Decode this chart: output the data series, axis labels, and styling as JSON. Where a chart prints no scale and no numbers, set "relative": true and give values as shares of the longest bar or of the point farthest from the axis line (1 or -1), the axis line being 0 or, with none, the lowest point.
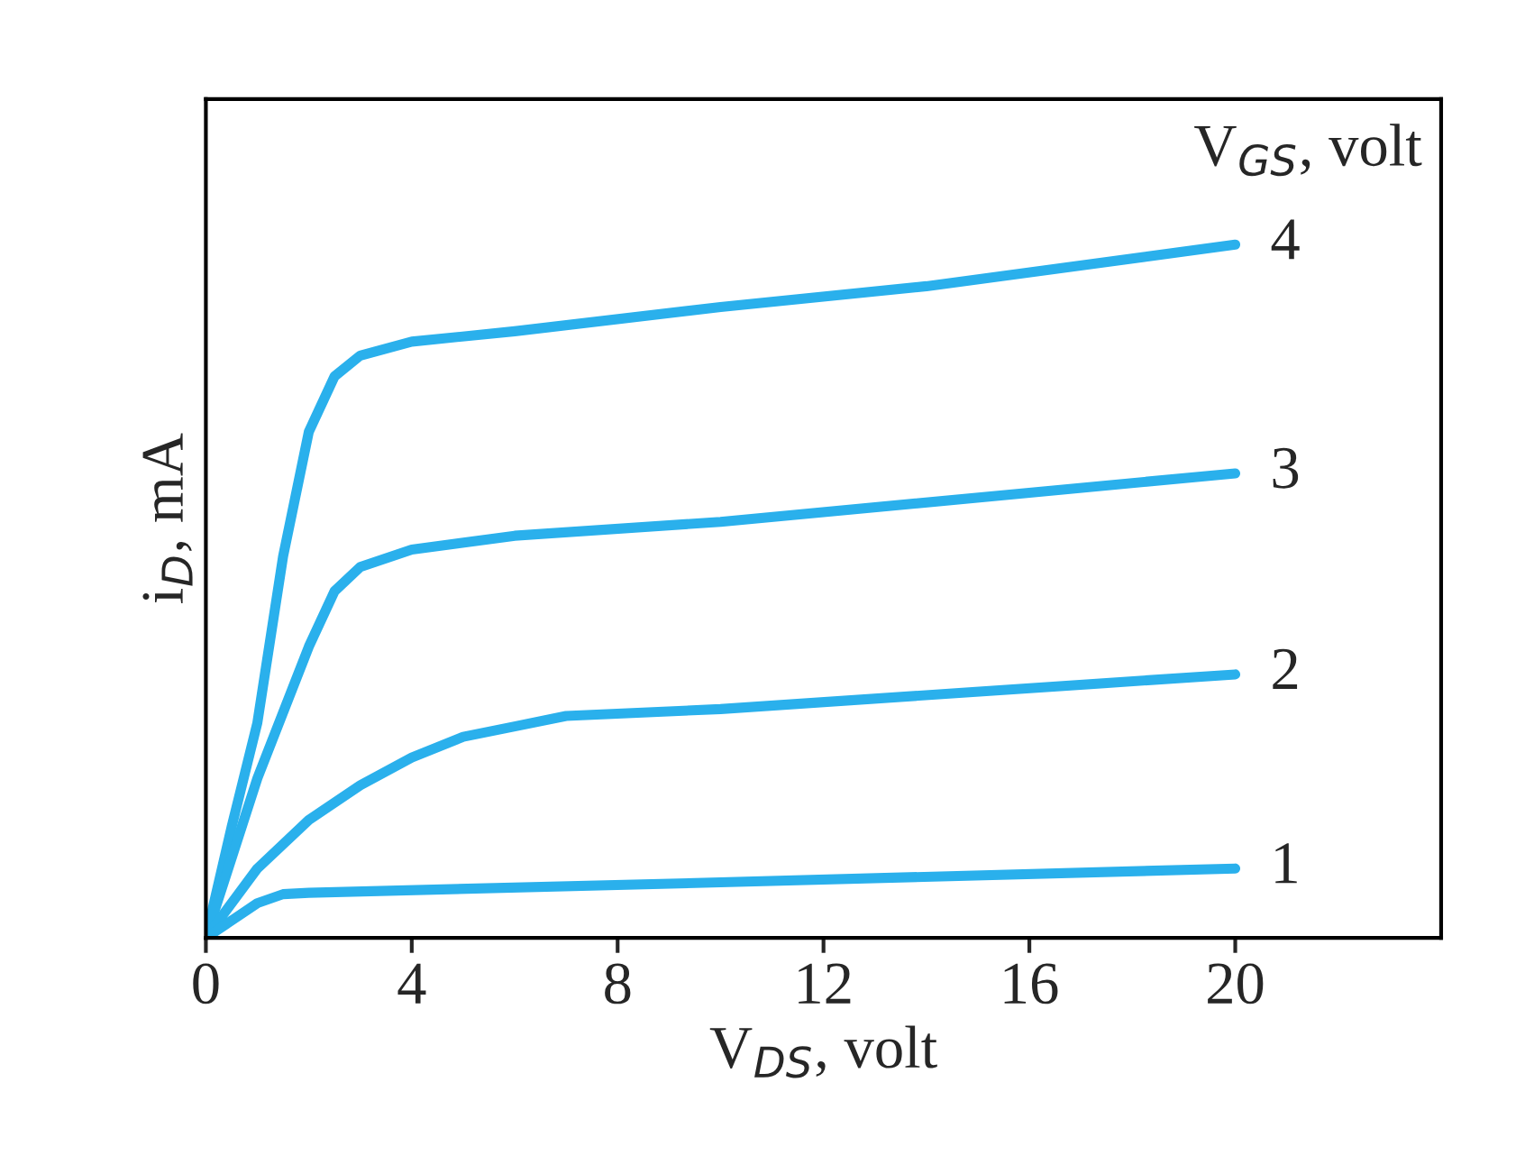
{
  "chart_data": {
    "type": "line",
    "relative": true,
    "xlabel": "V$_{DS}$, volt",
    "ylabel": "i$_{D}$, mA",
    "legend_title": "V$_{GS}$, volt",
    "xlim": [
      0,
      24
    ],
    "xticks": [
      0,
      4,
      8,
      12,
      16,
      20
    ],
    "grid": false,
    "legend": false,
    "tick_labels": "x",
    "series": [
      {
        "name": "4",
        "color": "#2ab0ec",
        "x": [
          0,
          0.5,
          1,
          1.5,
          2,
          2.5,
          3,
          4,
          6,
          10,
          14,
          20
        ],
        "values": [
          0,
          0.16,
          0.31,
          0.55,
          0.73,
          0.81,
          0.84,
          0.86,
          0.875,
          0.91,
          0.94,
          1.0
        ]
      },
      {
        "name": "3",
        "color": "#2ab0ec",
        "x": [
          0,
          1,
          2,
          2.5,
          3,
          4,
          6,
          10,
          20
        ],
        "values": [
          0,
          0.23,
          0.42,
          0.5,
          0.535,
          0.56,
          0.58,
          0.6,
          0.67
        ]
      },
      {
        "name": "2",
        "color": "#2ab0ec",
        "x": [
          0,
          1,
          2,
          3,
          4,
          5,
          6,
          7,
          10,
          20
        ],
        "values": [
          0,
          0.1,
          0.17,
          0.22,
          0.26,
          0.29,
          0.305,
          0.32,
          0.33,
          0.38
        ]
      },
      {
        "name": "1",
        "color": "#2ab0ec",
        "x": [
          0,
          1,
          1.5,
          2,
          10,
          20
        ],
        "values": [
          0,
          0.05,
          0.063,
          0.065,
          0.08,
          0.1
        ]
      }
    ]
  }
}
